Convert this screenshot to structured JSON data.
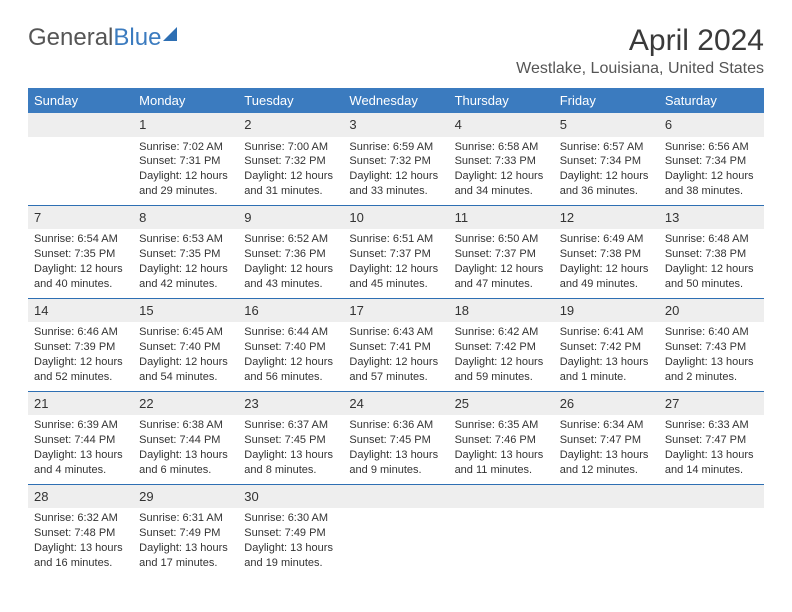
{
  "logo": {
    "word1": "General",
    "word2": "Blue"
  },
  "title": "April 2024",
  "location": "Westlake, Louisiana, United States",
  "colors": {
    "header_bg": "#3b7bbf",
    "header_text": "#ffffff",
    "daynum_bg": "#eeeeee",
    "rule": "#2e6fb3",
    "text": "#333333",
    "logo_gray": "#555555",
    "logo_blue": "#3b7bbf"
  },
  "day_headers": [
    "Sunday",
    "Monday",
    "Tuesday",
    "Wednesday",
    "Thursday",
    "Friday",
    "Saturday"
  ],
  "weeks": [
    {
      "nums": [
        "",
        "1",
        "2",
        "3",
        "4",
        "5",
        "6"
      ],
      "cells": [
        null,
        {
          "sunrise": "7:02 AM",
          "sunset": "7:31 PM",
          "daylight": "12 hours and 29 minutes."
        },
        {
          "sunrise": "7:00 AM",
          "sunset": "7:32 PM",
          "daylight": "12 hours and 31 minutes."
        },
        {
          "sunrise": "6:59 AM",
          "sunset": "7:32 PM",
          "daylight": "12 hours and 33 minutes."
        },
        {
          "sunrise": "6:58 AM",
          "sunset": "7:33 PM",
          "daylight": "12 hours and 34 minutes."
        },
        {
          "sunrise": "6:57 AM",
          "sunset": "7:34 PM",
          "daylight": "12 hours and 36 minutes."
        },
        {
          "sunrise": "6:56 AM",
          "sunset": "7:34 PM",
          "daylight": "12 hours and 38 minutes."
        }
      ]
    },
    {
      "nums": [
        "7",
        "8",
        "9",
        "10",
        "11",
        "12",
        "13"
      ],
      "cells": [
        {
          "sunrise": "6:54 AM",
          "sunset": "7:35 PM",
          "daylight": "12 hours and 40 minutes."
        },
        {
          "sunrise": "6:53 AM",
          "sunset": "7:35 PM",
          "daylight": "12 hours and 42 minutes."
        },
        {
          "sunrise": "6:52 AM",
          "sunset": "7:36 PM",
          "daylight": "12 hours and 43 minutes."
        },
        {
          "sunrise": "6:51 AM",
          "sunset": "7:37 PM",
          "daylight": "12 hours and 45 minutes."
        },
        {
          "sunrise": "6:50 AM",
          "sunset": "7:37 PM",
          "daylight": "12 hours and 47 minutes."
        },
        {
          "sunrise": "6:49 AM",
          "sunset": "7:38 PM",
          "daylight": "12 hours and 49 minutes."
        },
        {
          "sunrise": "6:48 AM",
          "sunset": "7:38 PM",
          "daylight": "12 hours and 50 minutes."
        }
      ]
    },
    {
      "nums": [
        "14",
        "15",
        "16",
        "17",
        "18",
        "19",
        "20"
      ],
      "cells": [
        {
          "sunrise": "6:46 AM",
          "sunset": "7:39 PM",
          "daylight": "12 hours and 52 minutes."
        },
        {
          "sunrise": "6:45 AM",
          "sunset": "7:40 PM",
          "daylight": "12 hours and 54 minutes."
        },
        {
          "sunrise": "6:44 AM",
          "sunset": "7:40 PM",
          "daylight": "12 hours and 56 minutes."
        },
        {
          "sunrise": "6:43 AM",
          "sunset": "7:41 PM",
          "daylight": "12 hours and 57 minutes."
        },
        {
          "sunrise": "6:42 AM",
          "sunset": "7:42 PM",
          "daylight": "12 hours and 59 minutes."
        },
        {
          "sunrise": "6:41 AM",
          "sunset": "7:42 PM",
          "daylight": "13 hours and 1 minute."
        },
        {
          "sunrise": "6:40 AM",
          "sunset": "7:43 PM",
          "daylight": "13 hours and 2 minutes."
        }
      ]
    },
    {
      "nums": [
        "21",
        "22",
        "23",
        "24",
        "25",
        "26",
        "27"
      ],
      "cells": [
        {
          "sunrise": "6:39 AM",
          "sunset": "7:44 PM",
          "daylight": "13 hours and 4 minutes."
        },
        {
          "sunrise": "6:38 AM",
          "sunset": "7:44 PM",
          "daylight": "13 hours and 6 minutes."
        },
        {
          "sunrise": "6:37 AM",
          "sunset": "7:45 PM",
          "daylight": "13 hours and 8 minutes."
        },
        {
          "sunrise": "6:36 AM",
          "sunset": "7:45 PM",
          "daylight": "13 hours and 9 minutes."
        },
        {
          "sunrise": "6:35 AM",
          "sunset": "7:46 PM",
          "daylight": "13 hours and 11 minutes."
        },
        {
          "sunrise": "6:34 AM",
          "sunset": "7:47 PM",
          "daylight": "13 hours and 12 minutes."
        },
        {
          "sunrise": "6:33 AM",
          "sunset": "7:47 PM",
          "daylight": "13 hours and 14 minutes."
        }
      ]
    },
    {
      "nums": [
        "28",
        "29",
        "30",
        "",
        "",
        "",
        ""
      ],
      "cells": [
        {
          "sunrise": "6:32 AM",
          "sunset": "7:48 PM",
          "daylight": "13 hours and 16 minutes."
        },
        {
          "sunrise": "6:31 AM",
          "sunset": "7:49 PM",
          "daylight": "13 hours and 17 minutes."
        },
        {
          "sunrise": "6:30 AM",
          "sunset": "7:49 PM",
          "daylight": "13 hours and 19 minutes."
        },
        null,
        null,
        null,
        null
      ]
    }
  ],
  "labels": {
    "sunrise": "Sunrise:",
    "sunset": "Sunset:",
    "daylight": "Daylight:"
  }
}
